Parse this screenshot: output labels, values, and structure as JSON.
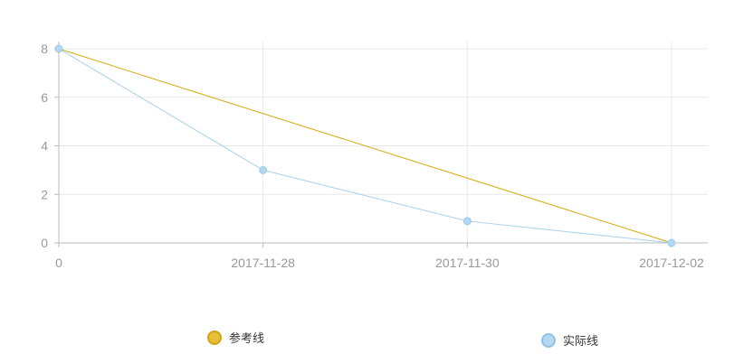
{
  "chart_data": {
    "type": "line",
    "title": "",
    "xlabel": "",
    "ylabel": "",
    "categories": [
      "0",
      "2017-11-28",
      "2017-11-30",
      "2017-12-02"
    ],
    "ylim": [
      0,
      8
    ],
    "yticks": [
      "0",
      "2",
      "4",
      "6",
      "8"
    ],
    "grid": true,
    "legend": "bottom",
    "series": [
      {
        "name": "参考线",
        "values": [
          8,
          5.33,
          2.67,
          0
        ],
        "color": "#d8a90f",
        "markers": false
      },
      {
        "name": "实际线",
        "values": [
          8,
          3,
          0.9,
          0
        ],
        "color": "#a6d0ee",
        "markers": true
      }
    ]
  }
}
